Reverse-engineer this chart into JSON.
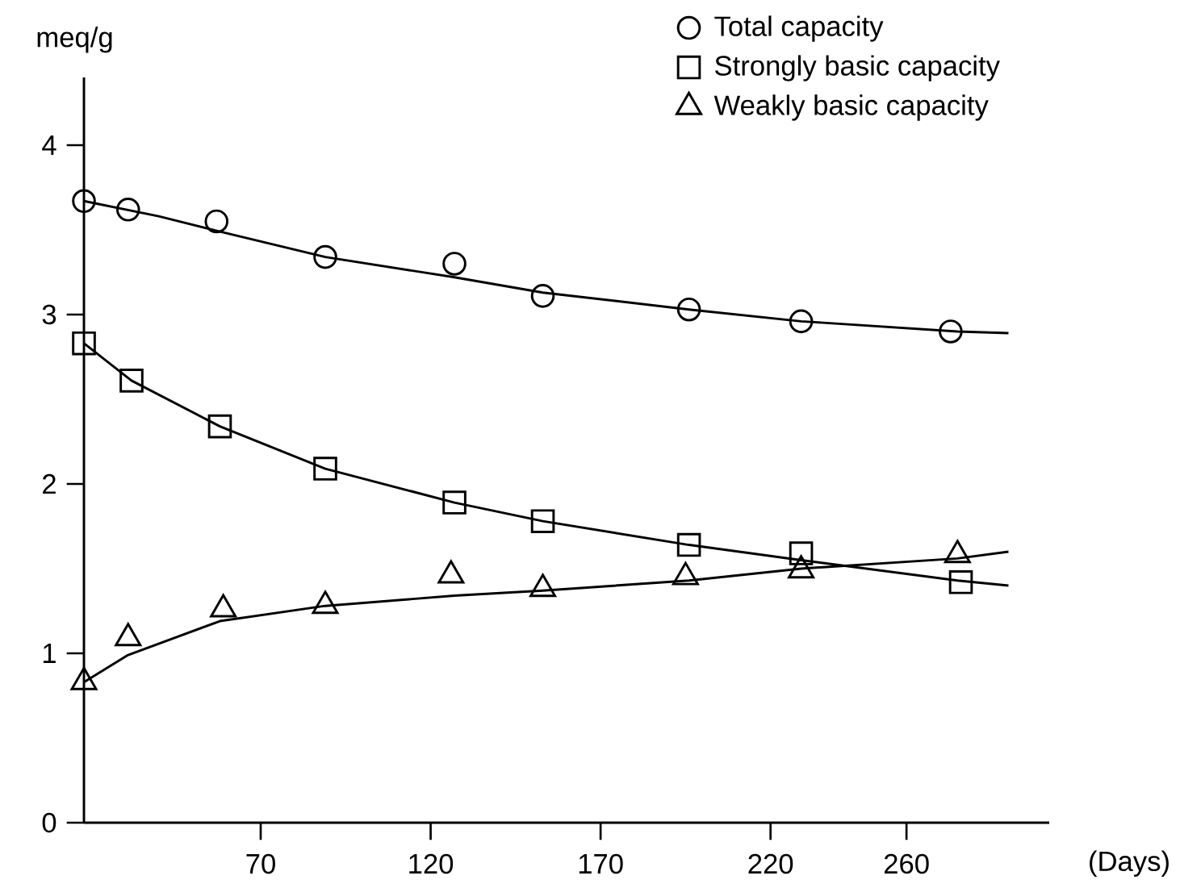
{
  "chart_data": {
    "type": "scatter",
    "ylabel": "meq/g",
    "xlabel": "(Days)",
    "xlim": [
      18,
      302
    ],
    "ylim": [
      0,
      4.4
    ],
    "xticks": [
      70,
      120,
      170,
      220,
      260
    ],
    "yticks": [
      0,
      1,
      2,
      3,
      4
    ],
    "legend": "top right",
    "grid": false,
    "series": [
      {
        "name": "Total capacity",
        "marker": "circle",
        "color": "#000000",
        "x": [
          18,
          31,
          57,
          89,
          127,
          153,
          196,
          229,
          273
        ],
        "values": [
          3.67,
          3.62,
          3.55,
          3.34,
          3.3,
          3.11,
          3.03,
          2.96,
          2.9
        ]
      },
      {
        "name": "Strongly basic capacity",
        "marker": "square",
        "color": "#000000",
        "x": [
          18,
          32,
          58,
          89,
          127,
          153,
          196,
          229,
          276
        ],
        "values": [
          2.83,
          2.61,
          2.34,
          2.09,
          1.89,
          1.78,
          1.64,
          1.59,
          1.42
        ]
      },
      {
        "name": "Weakly basic capacity",
        "marker": "triangle",
        "color": "#000000",
        "x": [
          18,
          31,
          59,
          89,
          126,
          153,
          195,
          229,
          275
        ],
        "values": [
          0.83,
          1.09,
          1.26,
          1.28,
          1.46,
          1.38,
          1.45,
          1.49,
          1.58
        ]
      },
      {
        "type": "line",
        "marker": "none",
        "line_style": "solid",
        "color": "#000000",
        "x": [
          18,
          40,
          58,
          89,
          127,
          153,
          196,
          229,
          275,
          290
        ],
        "values": [
          3.67,
          3.58,
          3.49,
          3.34,
          3.22,
          3.13,
          3.03,
          2.96,
          2.9,
          2.89
        ]
      },
      {
        "type": "line",
        "marker": "none",
        "line_style": "solid",
        "color": "#000000",
        "x": [
          18,
          32,
          58,
          89,
          127,
          153,
          196,
          229,
          275,
          290
        ],
        "values": [
          2.83,
          2.61,
          2.34,
          2.09,
          1.89,
          1.78,
          1.64,
          1.55,
          1.43,
          1.4
        ]
      },
      {
        "type": "line",
        "marker": "none",
        "line_style": "solid",
        "color": "#000000",
        "x": [
          18,
          31,
          58,
          89,
          127,
          153,
          196,
          229,
          275,
          290
        ],
        "values": [
          0.83,
          0.99,
          1.19,
          1.28,
          1.34,
          1.37,
          1.43,
          1.5,
          1.56,
          1.6
        ]
      }
    ]
  }
}
